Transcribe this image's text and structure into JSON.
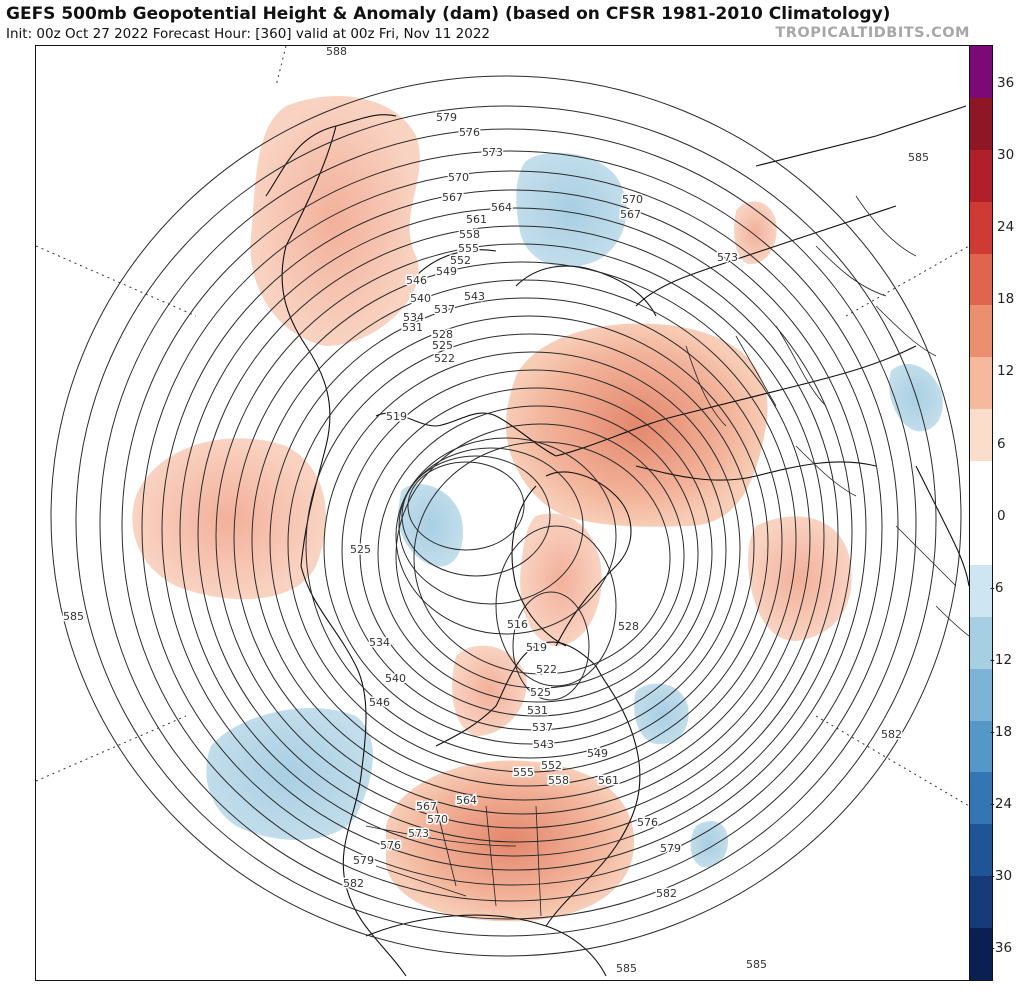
{
  "header": {
    "title": "GEFS 500mb Geopotential Height & Anomaly (dam) (based on CFSR 1981-2010 Climatology)",
    "subtitle": "Init: 00z Oct 27 2022   Forecast Hour: [360]   valid at 00z Fri, Nov 11 2022",
    "brand": "TROPICALTIDBITS.COM"
  },
  "colorbar": {
    "ticks": [
      "36",
      "30",
      "24",
      "18",
      "12",
      "6",
      "0",
      "-6",
      "-12",
      "-18",
      "-24",
      "-30",
      "-36"
    ],
    "colors": [
      "#7b0a78",
      "#8f1625",
      "#b01f2a",
      "#cf3a35",
      "#e0654e",
      "#ec8e70",
      "#f6b99d",
      "#fcdccb",
      "#ffffff",
      "#ffffff",
      "#cde6f1",
      "#a6cfe4",
      "#7db3d6",
      "#5597c7",
      "#3575b4",
      "#1f5596",
      "#163b78",
      "#0c1f52"
    ],
    "tick_colors": {
      "warm": "#f6b99d",
      "cool": "#a6cfe4"
    }
  },
  "map": {
    "contour_labels": [
      "588",
      "579",
      "576",
      "573",
      "570",
      "567",
      "564",
      "561",
      "558",
      "555",
      "552",
      "549",
      "546",
      "543",
      "540",
      "537",
      "534",
      "531",
      "528",
      "525",
      "522",
      "519",
      "525",
      "534",
      "540",
      "546",
      "585",
      "573",
      "570",
      "567",
      "585",
      "582",
      "579",
      "576",
      "582",
      "585",
      "519",
      "516",
      "522",
      "525",
      "531",
      "537",
      "543",
      "549",
      "552",
      "555",
      "558",
      "561",
      "564",
      "567",
      "570",
      "573",
      "576",
      "579",
      "582",
      "585",
      "528",
      "585"
    ]
  }
}
